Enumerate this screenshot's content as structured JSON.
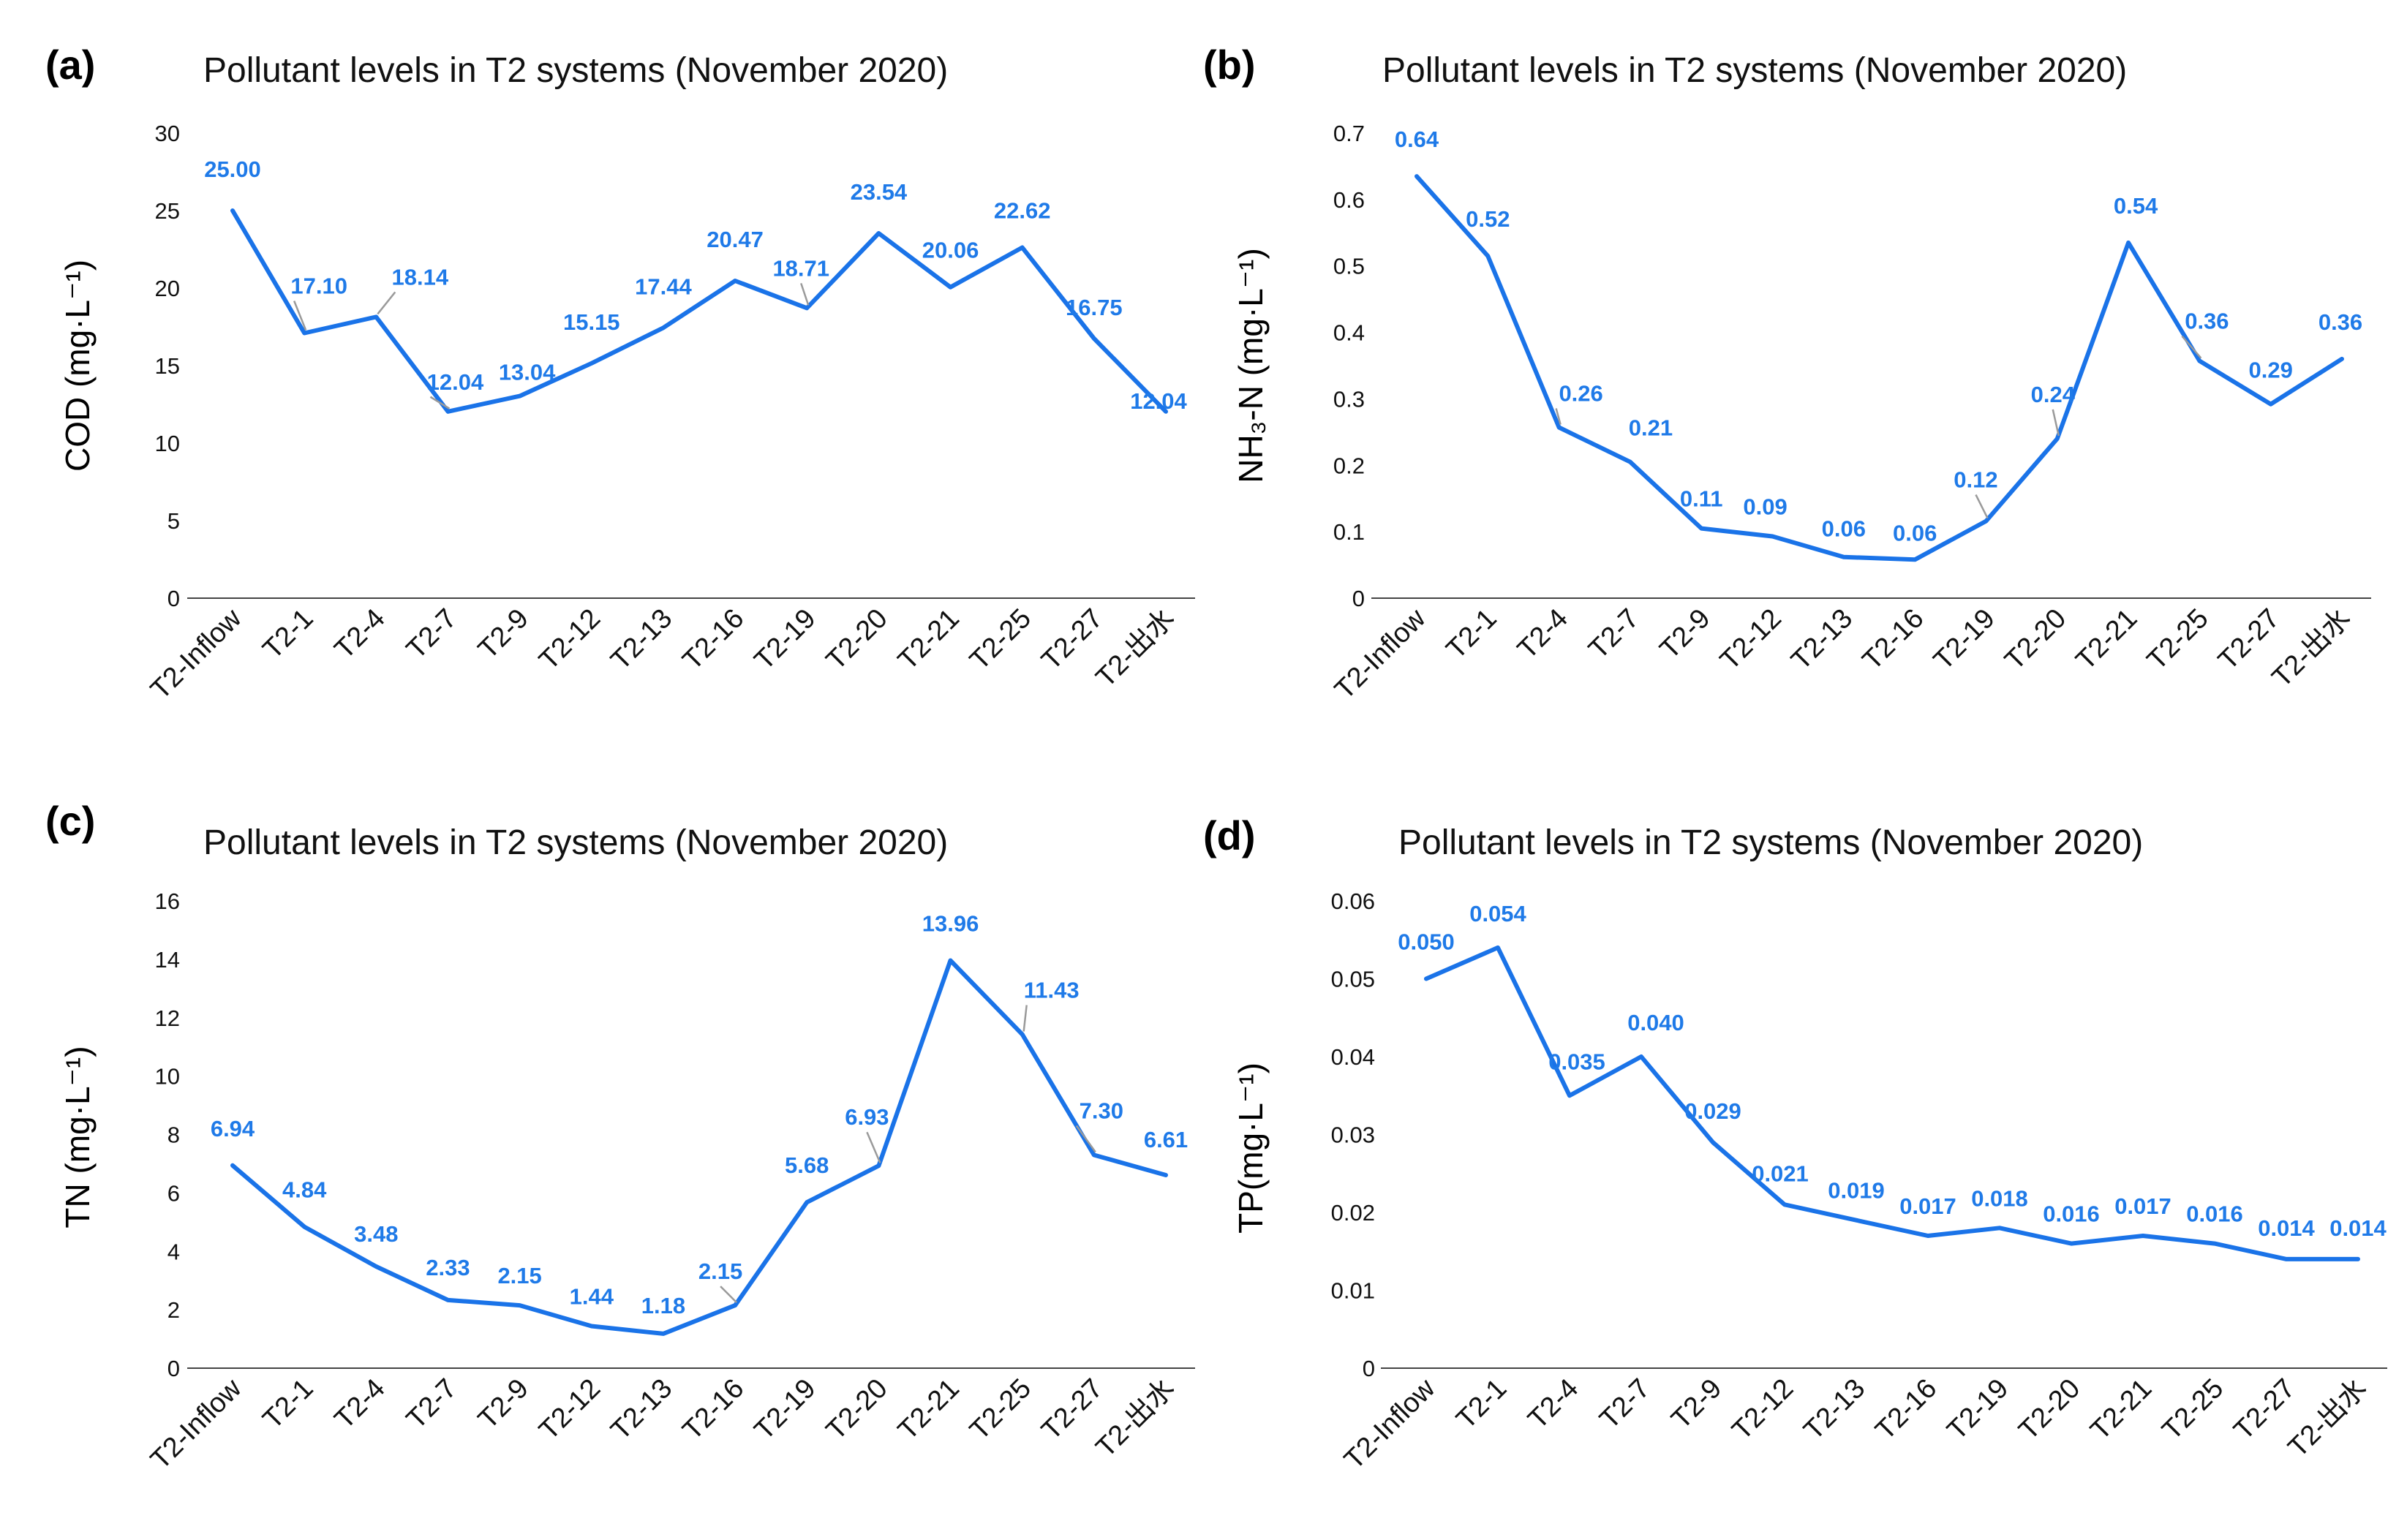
{
  "colors": {
    "line": "#1a73e8",
    "label": "#1f7ae8",
    "drop": "#8ec2f2",
    "axis": "#444444",
    "leader": "#9a9a9a"
  },
  "chart_data": [
    {
      "type": "line",
      "panel": "(a)",
      "title": "Pollutant levels in T2 systems (November 2020)",
      "ylabel": "COD (mg·L⁻¹)",
      "xlabel": "",
      "categories": [
        "T2-Inflow",
        "T2-1",
        "T2-4",
        "T2-7",
        "T2-9",
        "T2-12",
        "T2-13",
        "T2-16",
        "T2-19",
        "T2-20",
        "T2-21",
        "T2-25",
        "T2-27",
        "T2-出水"
      ],
      "values": [
        25.0,
        17.1,
        18.14,
        12.04,
        13.04,
        15.15,
        17.44,
        20.47,
        18.71,
        23.54,
        20.06,
        22.62,
        16.75,
        12.04
      ],
      "value_labels": [
        "25.00",
        "17.10",
        "18.14",
        "12.04",
        "13.04",
        "15.15",
        "17.44",
        "20.47",
        "18.71",
        "23.54",
        "20.06",
        "22.62",
        "16.75",
        "12.04"
      ],
      "ylim": [
        0,
        30
      ],
      "yticks": [
        "0",
        "5",
        "10",
        "15",
        "20",
        "25",
        "30"
      ]
    },
    {
      "type": "line",
      "panel": "(b)",
      "title": "Pollutant levels in T2 systems (November 2020)",
      "ylabel": "NH₃-N (mg·L⁻¹)",
      "xlabel": "",
      "categories": [
        "T2-Inflow",
        "T2-1",
        "T2-4",
        "T2-7",
        "T2-9",
        "T2-12",
        "T2-13",
        "T2-16",
        "T2-19",
        "T2-20",
        "T2-21",
        "T2-25",
        "T2-27",
        "T2-出水"
      ],
      "values": [
        0.635,
        0.515,
        0.257,
        0.205,
        0.105,
        0.093,
        0.062,
        0.058,
        0.116,
        0.24,
        0.535,
        0.357,
        0.292,
        0.36
      ],
      "value_labels": [
        "0.64",
        "0.52",
        "0.26",
        "0.21",
        "0.11",
        "0.09",
        "0.06",
        "0.06",
        "0.12",
        "0.24",
        "0.54",
        "0.36",
        "0.29",
        "0.36"
      ],
      "ylim": [
        0,
        0.7
      ],
      "yticks": [
        "0",
        "0.1",
        "0.2",
        "0.3",
        "0.4",
        "0.5",
        "0.6",
        "0.7"
      ]
    },
    {
      "type": "line",
      "panel": "(c)",
      "title": "Pollutant levels in T2 systems (November 2020)",
      "ylabel": "TN (mg·L⁻¹)",
      "xlabel": "",
      "categories": [
        "T2-Inflow",
        "T2-1",
        "T2-4",
        "T2-7",
        "T2-9",
        "T2-12",
        "T2-13",
        "T2-16",
        "T2-19",
        "T2-20",
        "T2-21",
        "T2-25",
        "T2-27",
        "T2-出水"
      ],
      "values": [
        6.94,
        4.84,
        3.48,
        2.33,
        2.15,
        1.44,
        1.18,
        2.15,
        5.68,
        6.93,
        13.96,
        11.43,
        7.3,
        6.61
      ],
      "value_labels": [
        "6.94",
        "4.84",
        "3.48",
        "2.33",
        "2.15",
        "1.44",
        "1.18",
        "2.15",
        "5.68",
        "6.93",
        "13.96",
        "11.43",
        "7.30",
        "6.61"
      ],
      "ylim": [
        0,
        16
      ],
      "yticks": [
        "0",
        "2",
        "4",
        "6",
        "8",
        "10",
        "12",
        "14",
        "16"
      ]
    },
    {
      "type": "line",
      "panel": "(d)",
      "title": "Pollutant levels in T2 systems (November 2020)",
      "ylabel": "TP(mg·L⁻¹)",
      "xlabel": "",
      "categories": [
        "T2-Inflow",
        "T2-1",
        "T2-4",
        "T2-7",
        "T2-9",
        "T2-12",
        "T2-13",
        "T2-16",
        "T2-19",
        "T2-20",
        "T2-21",
        "T2-25",
        "T2-27",
        "T2-出水"
      ],
      "values": [
        0.05,
        0.054,
        0.035,
        0.04,
        0.029,
        0.021,
        0.019,
        0.017,
        0.018,
        0.016,
        0.017,
        0.016,
        0.014,
        0.014
      ],
      "value_labels": [
        "0.050",
        "0.054",
        "0.035",
        "0.040",
        "0.029",
        "0.021",
        "0.019",
        "0.017",
        "0.018",
        "0.016",
        "0.017",
        "0.016",
        "0.014",
        "0.014"
      ],
      "ylim": [
        0,
        0.06
      ],
      "yticks": [
        "0",
        "0.01",
        "0.02",
        "0.03",
        "0.04",
        "0.05",
        "0.06"
      ]
    }
  ]
}
